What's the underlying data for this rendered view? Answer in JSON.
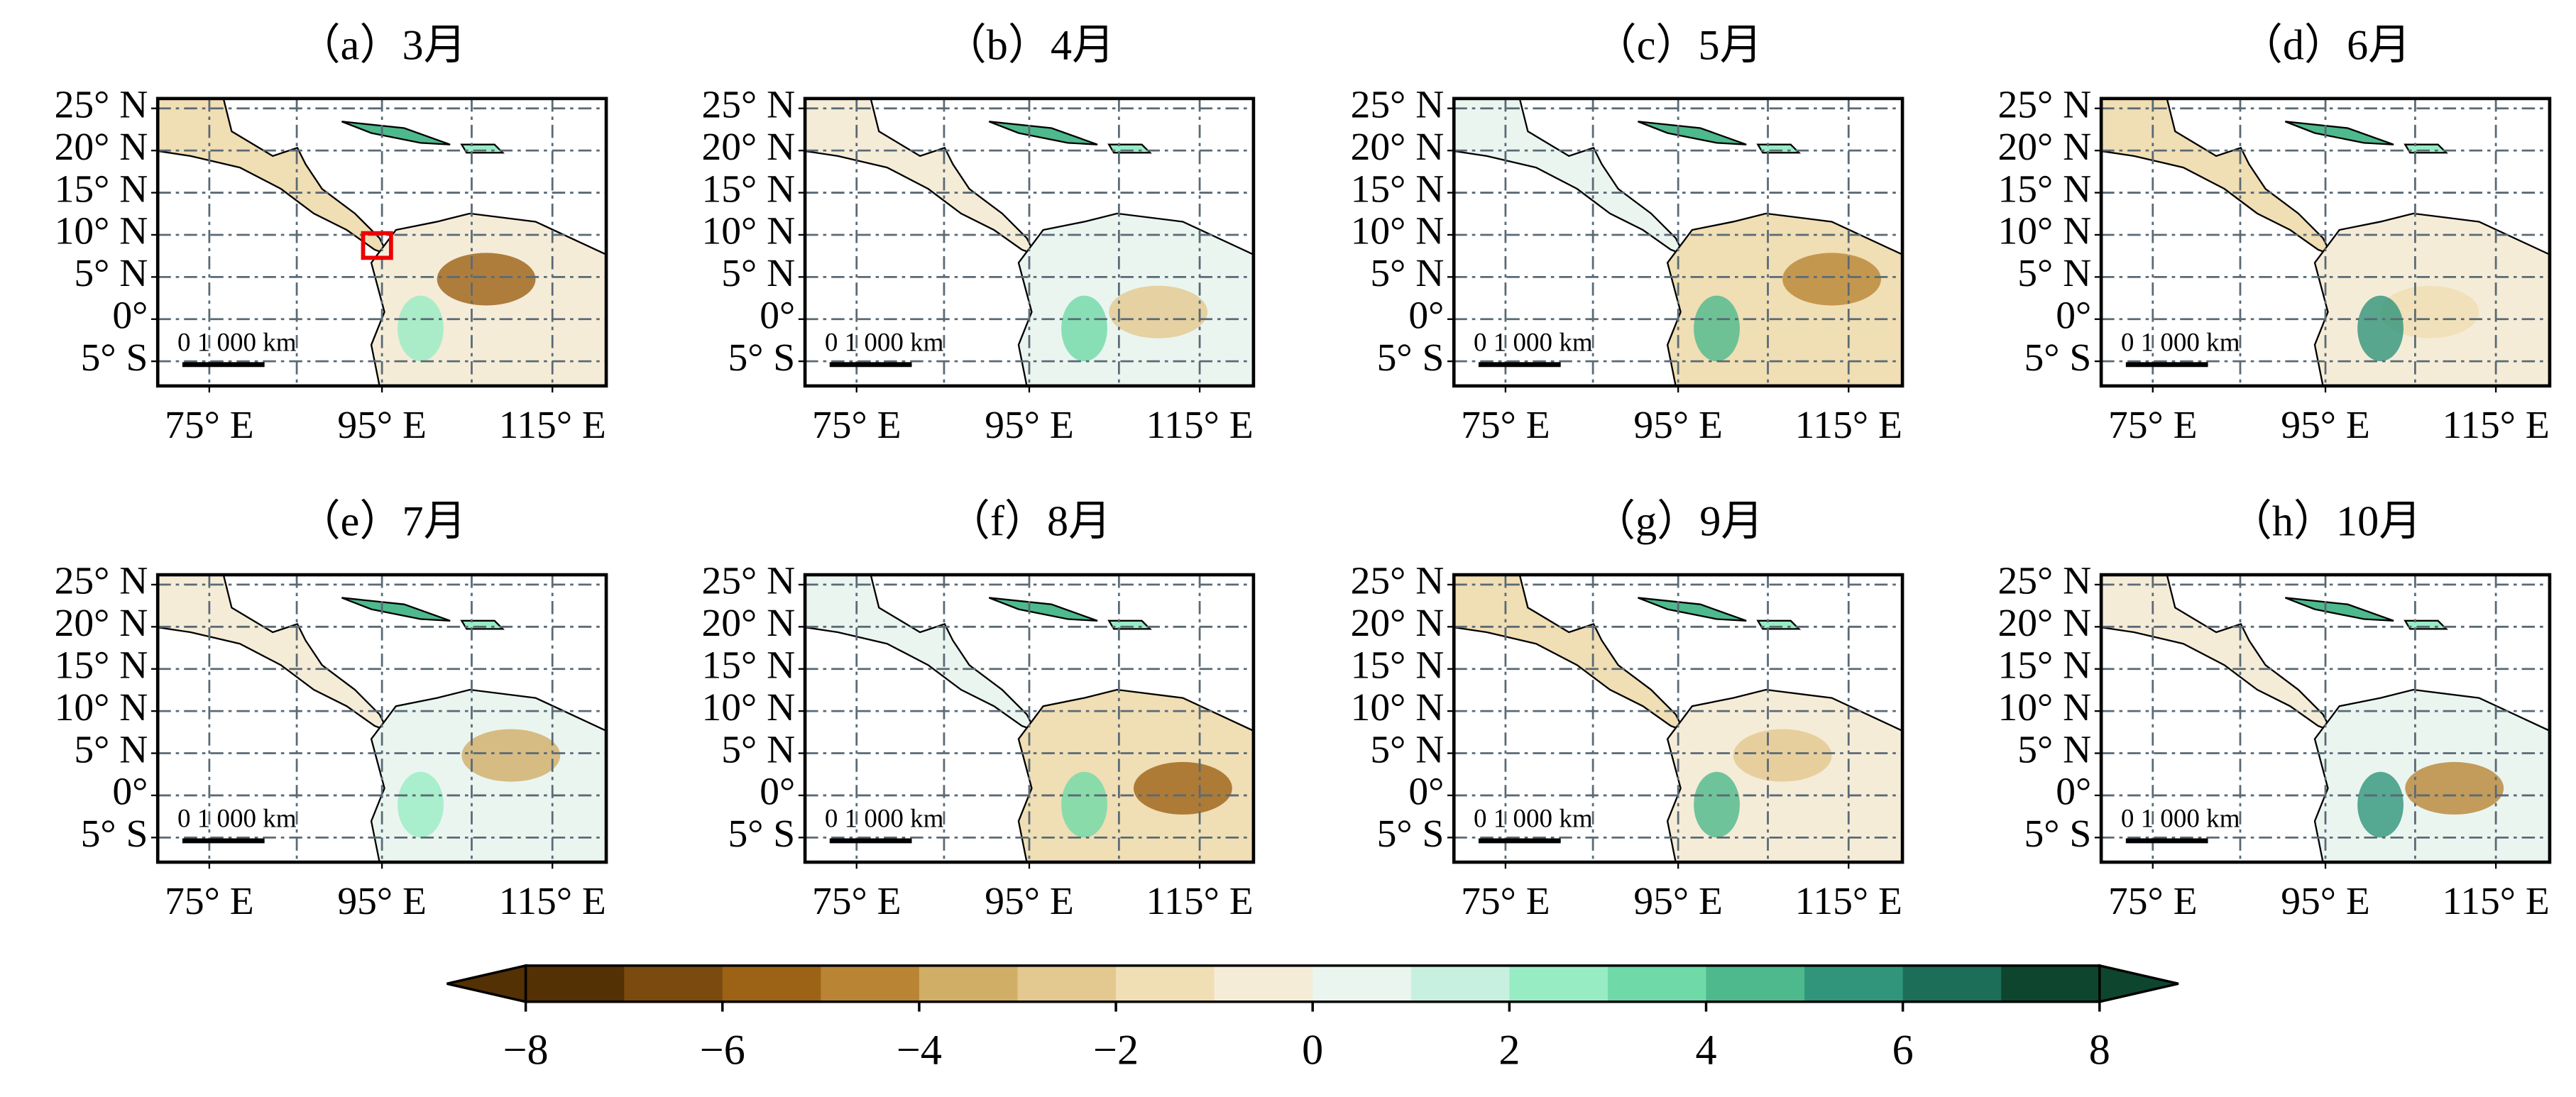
{
  "panels": [
    {
      "title": "（a）3月"
    },
    {
      "title": "（b）4月"
    },
    {
      "title": "（c）5月"
    },
    {
      "title": "（d）6月"
    },
    {
      "title": "（e）7月"
    },
    {
      "title": "（f）8月"
    },
    {
      "title": "（g）9月"
    },
    {
      "title": "（h）10月"
    }
  ],
  "lat_labels": [
    "25° N",
    "20° N",
    "15° N",
    "10° N",
    "5° N",
    "0°",
    "5° S"
  ],
  "lon_labels": [
    "75° E",
    "95° E",
    "115° E"
  ],
  "scale_label": "0  1 000 km",
  "colorbar": {
    "lim": [
      -8,
      8
    ],
    "ticks": [
      -8,
      -6,
      -4,
      -2,
      0,
      2,
      4,
      6,
      8
    ],
    "colors": [
      "#543005",
      "#7a4a0f",
      "#9c6215",
      "#b98434",
      "#d1ae66",
      "#e3c88f",
      "#f0deb4",
      "#f5ecd8",
      "#eaf5f0",
      "#c7f0e0",
      "#98ecc4",
      "#6fd9a8",
      "#4db98c",
      "#30957a",
      "#1d6e58",
      "#0e452f"
    ]
  }
}
